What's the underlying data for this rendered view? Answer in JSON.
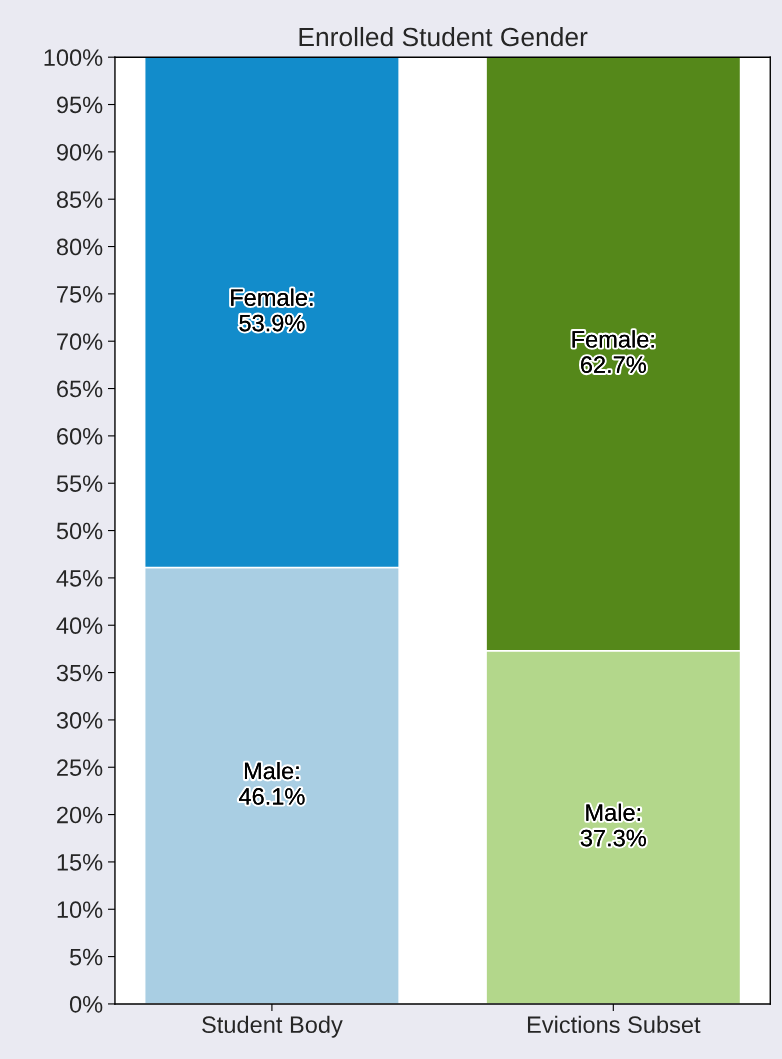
{
  "chart_data": {
    "type": "bar",
    "title": "Enrolled Student Gender",
    "categories": [
      "Student Body",
      "Evictions Subset"
    ],
    "stacked": true,
    "series": [
      {
        "colors": [
          "#a9cee3",
          "#b3d78b"
        ],
        "values": [
          46.1,
          37.3
        ],
        "value_labels": [
          "Male:\n46.1%",
          "Male:\n37.3%"
        ]
      },
      {
        "colors": [
          "#128ccb",
          "#55881a"
        ],
        "values": [
          53.9,
          62.7
        ],
        "value_labels": [
          "Female:\n53.9%",
          "Female:\n62.7%"
        ]
      }
    ],
    "ylim": [
      0,
      100
    ],
    "yticks": [
      {
        "value": 0,
        "label": "0%"
      },
      {
        "value": 5,
        "label": "5%"
      },
      {
        "value": 10,
        "label": "10%"
      },
      {
        "value": 15,
        "label": "15%"
      },
      {
        "value": 20,
        "label": "20%"
      },
      {
        "value": 25,
        "label": "25%"
      },
      {
        "value": 30,
        "label": "30%"
      },
      {
        "value": 35,
        "label": "35%"
      },
      {
        "value": 40,
        "label": "40%"
      },
      {
        "value": 45,
        "label": "45%"
      },
      {
        "value": 50,
        "label": "50%"
      },
      {
        "value": 55,
        "label": "55%"
      },
      {
        "value": 60,
        "label": "60%"
      },
      {
        "value": 65,
        "label": "65%"
      },
      {
        "value": 70,
        "label": "70%"
      },
      {
        "value": 75,
        "label": "75%"
      },
      {
        "value": 80,
        "label": "80%"
      },
      {
        "value": 85,
        "label": "85%"
      },
      {
        "value": 90,
        "label": "90%"
      },
      {
        "value": 95,
        "label": "95%"
      },
      {
        "value": 100,
        "label": "100%"
      }
    ],
    "grid": false,
    "legend": false
  }
}
